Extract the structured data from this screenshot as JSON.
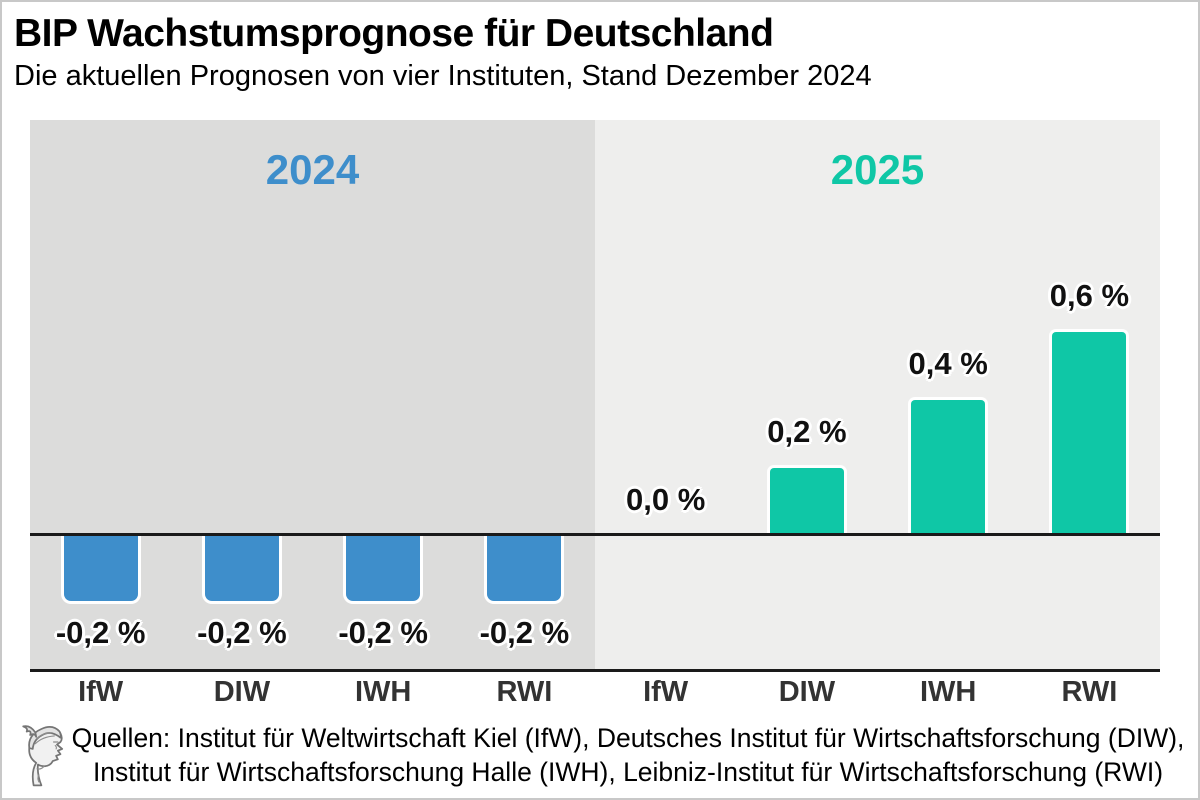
{
  "header": {
    "title": "BIP Wachstumsprognose für Deutschland",
    "subtitle": "Die aktuellen Prognosen von vier Instituten, Stand Dezember 2024"
  },
  "chart_data": {
    "type": "bar",
    "title": "BIP Wachstumsprognose für Deutschland",
    "subtitle": "Die aktuellen Prognosen von vier Instituten, Stand Dezember 2024",
    "unit": "%",
    "categories": [
      "IfW",
      "DIW",
      "IWH",
      "RWI"
    ],
    "series": [
      {
        "name": "2024",
        "values": [
          -0.2,
          -0.2,
          -0.2,
          -0.2
        ],
        "value_labels": [
          "-0,2 %",
          "-0,2 %",
          "-0,2 %",
          "-0,2 %"
        ],
        "color": "#3E8ECB",
        "panel_bg": "#DCDCDB"
      },
      {
        "name": "2025",
        "values": [
          0.0,
          0.2,
          0.4,
          0.6
        ],
        "value_labels": [
          "0,0 %",
          "0,2 %",
          "0,4 %",
          "0,6 %"
        ],
        "color": "#0FC7A6",
        "panel_bg": "#EEEEED"
      }
    ],
    "ylim": [
      -0.35,
      1.25
    ],
    "baseline": 0,
    "grid": false,
    "legend_position": "none",
    "layout": "two side-by-side year panels, value labels on bars, category ticks below"
  },
  "footer": {
    "source_line1": "Quellen: Institut für Weltwirtschaft Kiel (IfW), Deutsches Institut für Wirtschaftsforschung (DIW),",
    "source_line2": "Institut für Wirtschaftsforschung Halle (IWH), Leibniz-Institut für Wirtschaftsforschung (RWI)",
    "logo": "hermes-head-logo"
  },
  "colors": {
    "bar_2024": "#3E8ECB",
    "bar_2025": "#0FC7A6",
    "panel_2024_bg": "#DCDCDB",
    "panel_2025_bg": "#EEEEED",
    "axis_line": "#1A1A1A",
    "tick_label": "#333333",
    "frame_border": "#C8C8C8"
  }
}
